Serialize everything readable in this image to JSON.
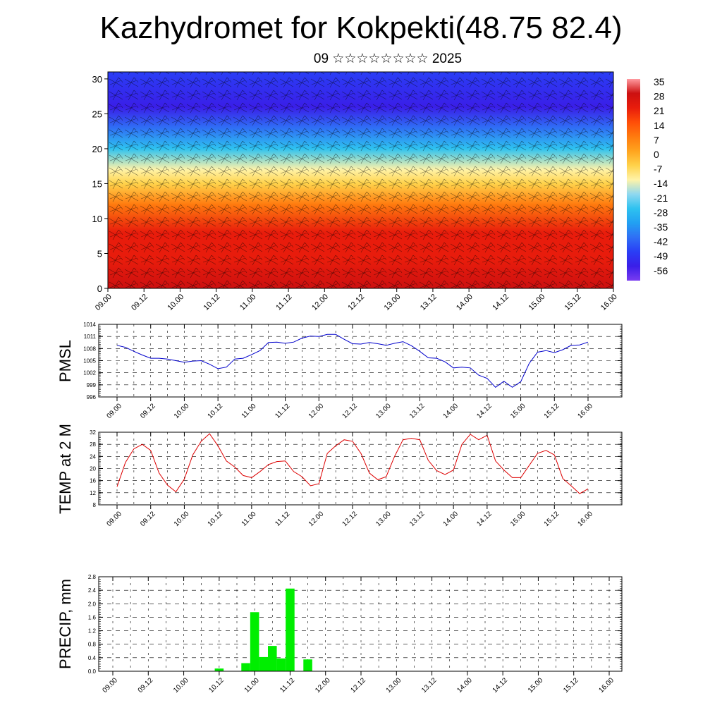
{
  "title": "Kazhydromet for Kokpekti(48.75 82.4)",
  "subtitle": "09 ☆☆☆☆☆☆☆☆ 2025",
  "time_ticks": [
    "09.00",
    "09.12",
    "10.00",
    "10.12",
    "11.00",
    "11.12",
    "12.00",
    "12.12",
    "13.00",
    "13.12",
    "14.00",
    "14.12",
    "15.00",
    "15.12",
    "16.00"
  ],
  "colors": {
    "pmsl_line": "#0000cc",
    "temp_line": "#dd0000",
    "precip_bar": "#00ee00"
  },
  "chart_data": [
    {
      "type": "heatmap",
      "description_tag": "cross-section",
      "x_ticks": [
        "09.00",
        "09.12",
        "10.00",
        "10.12",
        "11.00",
        "11.12",
        "12.00",
        "12.12",
        "13.00",
        "13.12",
        "14.00",
        "14.12",
        "15.00",
        "15.12",
        "16.00"
      ],
      "y_ticks": [
        0,
        5,
        10,
        15,
        20,
        25,
        30
      ],
      "ylim": [
        0,
        31
      ],
      "colorbar_labels": [
        "35",
        "28",
        "21",
        "14",
        "7",
        "0",
        "-7",
        "-14",
        "-21",
        "-28",
        "-35",
        "-42",
        "-49",
        "-56"
      ],
      "temp_profile": [
        {
          "y": 0,
          "t": 28
        },
        {
          "y": 4,
          "t": 24
        },
        {
          "y": 8,
          "t": 18
        },
        {
          "y": 12,
          "t": 9
        },
        {
          "y": 15,
          "t": -4
        },
        {
          "y": 17,
          "t": -14
        },
        {
          "y": 20,
          "t": -28
        },
        {
          "y": 23,
          "t": -42
        },
        {
          "y": 26,
          "t": -56
        },
        {
          "y": 31,
          "t": -50
        }
      ]
    },
    {
      "type": "line",
      "ylabel": "PMSL",
      "ylim": [
        996,
        1014
      ],
      "y_ticks": [
        996,
        999,
        1002,
        1005,
        1008,
        1011,
        1014
      ],
      "x": [
        "09.00",
        "09.03",
        "09.06",
        "09.09",
        "09.12",
        "09.15",
        "09.18",
        "09.21",
        "10.00",
        "10.03",
        "10.06",
        "10.09",
        "10.12",
        "10.15",
        "10.18",
        "10.21",
        "11.00",
        "11.03",
        "11.06",
        "11.09",
        "11.12",
        "11.15",
        "11.18",
        "11.21",
        "12.00",
        "12.03",
        "12.06",
        "12.09",
        "12.12",
        "12.15",
        "12.18",
        "12.21",
        "13.00",
        "13.03",
        "13.06",
        "13.09",
        "13.12",
        "13.15",
        "13.18",
        "13.21",
        "14.00",
        "14.03",
        "14.06",
        "14.09",
        "14.12",
        "14.15",
        "14.18",
        "14.21",
        "15.00",
        "15.03",
        "15.06",
        "15.09",
        "15.12",
        "15.15",
        "15.18",
        "15.21",
        "16.00"
      ],
      "values": [
        1008.8,
        1008.3,
        1007.3,
        1006.4,
        1005.6,
        1005.6,
        1005.4,
        1005.0,
        1004.6,
        1004.9,
        1005.0,
        1004.1,
        1003.0,
        1003.4,
        1005.4,
        1005.6,
        1006.5,
        1007.5,
        1009.5,
        1009.6,
        1009.3,
        1009.6,
        1010.6,
        1011.1,
        1011.0,
        1011.5,
        1011.5,
        1010.3,
        1009.2,
        1009.1,
        1009.5,
        1009.2,
        1008.8,
        1009.3,
        1009.7,
        1008.7,
        1007.3,
        1005.7,
        1005.6,
        1004.7,
        1003.2,
        1003.4,
        1003.2,
        1001.4,
        1000.6,
        998.4,
        999.9,
        998.4,
        999.8,
        1004.3,
        1007.1,
        1007.5,
        1007.0,
        1007.7,
        1008.8,
        1008.9,
        1009.6
      ],
      "color": "#0000cc"
    },
    {
      "type": "line",
      "ylabel": "TEMP at 2 M",
      "ylim": [
        8,
        32
      ],
      "y_ticks": [
        8,
        12,
        16,
        20,
        24,
        28,
        32
      ],
      "x": [
        "09.00",
        "09.03",
        "09.06",
        "09.09",
        "09.12",
        "09.15",
        "09.18",
        "09.21",
        "10.00",
        "10.03",
        "10.06",
        "10.09",
        "10.12",
        "10.15",
        "10.18",
        "10.21",
        "11.00",
        "11.03",
        "11.06",
        "11.09",
        "11.12",
        "11.15",
        "11.18",
        "11.21",
        "12.00",
        "12.03",
        "12.06",
        "12.09",
        "12.12",
        "12.15",
        "12.18",
        "12.21",
        "13.00",
        "13.03",
        "13.06",
        "13.09",
        "13.12",
        "13.15",
        "13.18",
        "13.21",
        "14.00",
        "14.03",
        "14.06",
        "14.09",
        "14.12",
        "14.15",
        "14.18",
        "14.21",
        "15.00",
        "15.03",
        "15.06",
        "15.09",
        "15.12",
        "15.15",
        "15.18",
        "15.21",
        "16.00"
      ],
      "values": [
        14,
        22,
        26.5,
        28,
        26,
        18.5,
        14.5,
        12.3,
        16.5,
        24.5,
        29,
        31.5,
        27.5,
        22.5,
        20.5,
        17.7,
        17,
        19,
        21.3,
        22.3,
        22.5,
        19,
        17.3,
        14.3,
        15,
        25,
        27.5,
        29.5,
        29,
        25,
        18.5,
        16.3,
        17.3,
        24,
        29.5,
        30,
        29.5,
        22.7,
        19.3,
        18,
        19.5,
        28,
        31.3,
        29.5,
        31,
        22.5,
        19.5,
        17,
        17,
        21,
        25,
        26,
        24.5,
        16.7,
        14.3,
        11.7,
        13.3
      ],
      "color": "#dd0000"
    },
    {
      "type": "bar",
      "ylabel": "PRECIP, mm",
      "ylim": [
        0,
        2.8
      ],
      "y_ticks": [
        "0.0",
        "0.4",
        "0.8",
        "1.2",
        "1.6",
        "2.0",
        "2.4",
        "2.8"
      ],
      "x": [
        "10.12",
        "10.21",
        "11.00",
        "11.03",
        "11.06",
        "11.09",
        "11.12",
        "11.18",
        "13.09",
        "13.12",
        "14.09"
      ],
      "values": [
        0.08,
        0.24,
        1.75,
        0.42,
        0.75,
        0.38,
        2.45,
        0.35,
        0.01,
        0.01,
        0.01
      ],
      "color": "#00ee00"
    }
  ]
}
